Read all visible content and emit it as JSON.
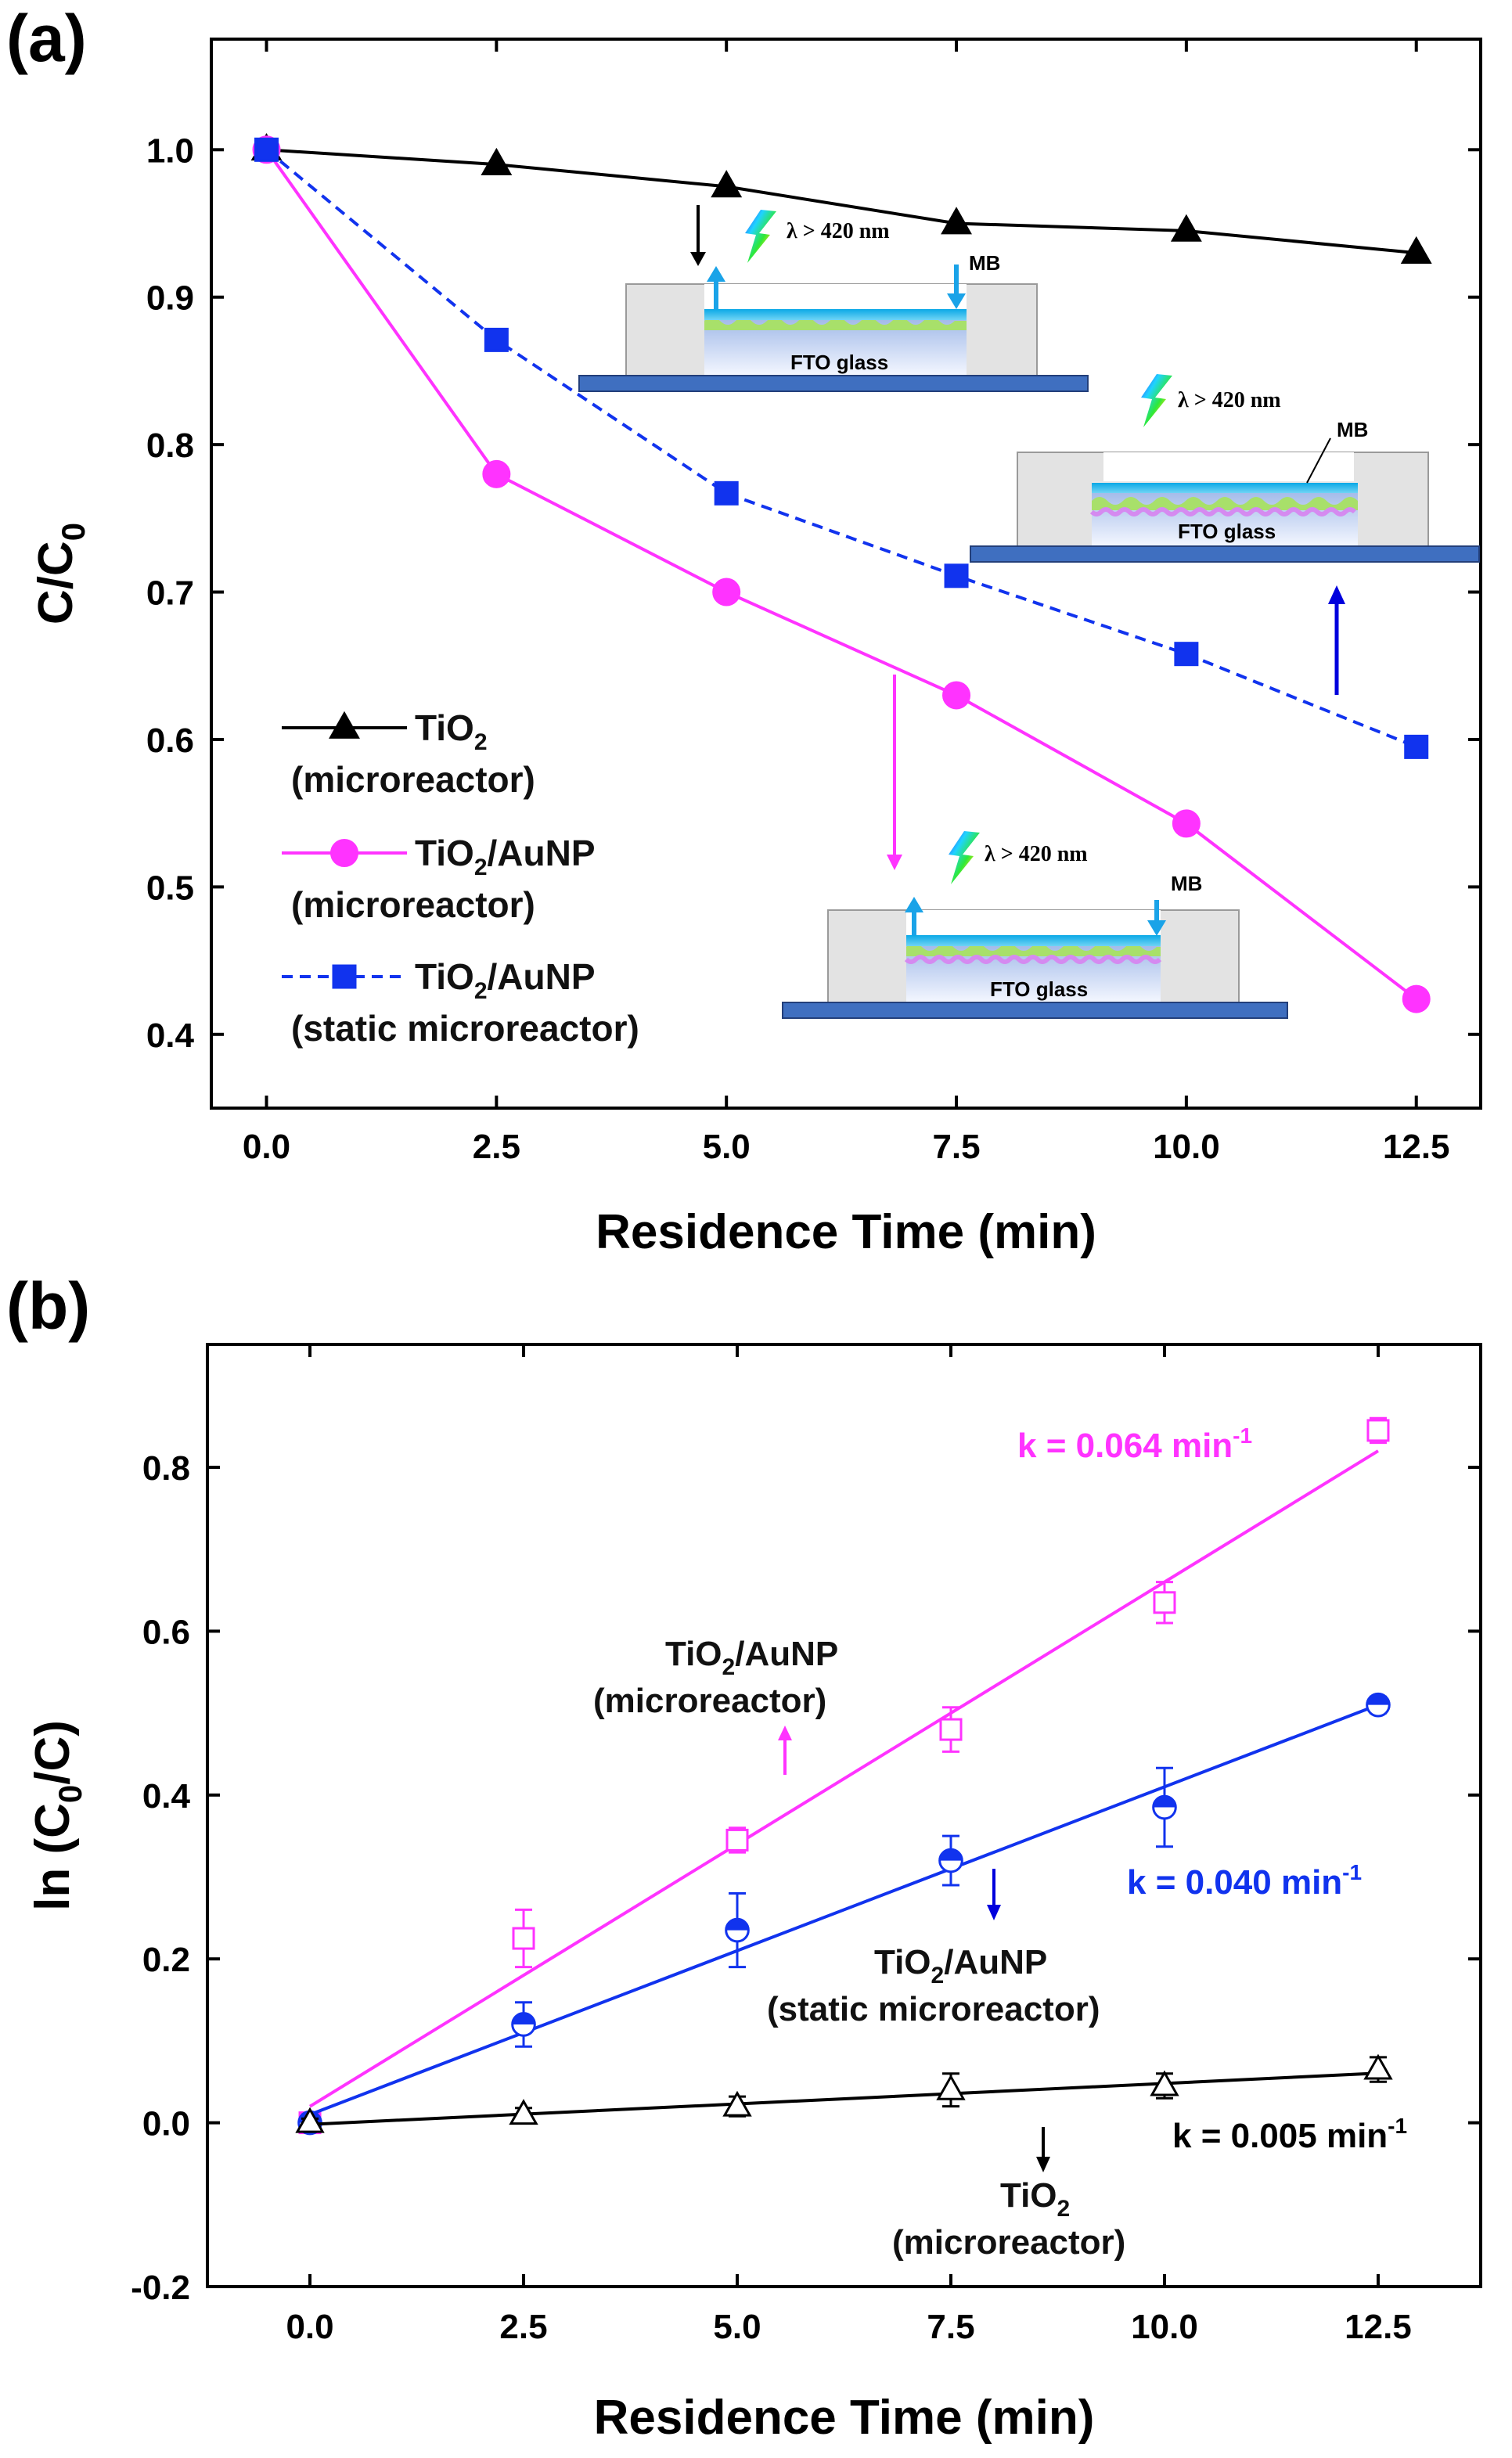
{
  "panel_a": {
    "label": "(a)",
    "insets": {
      "lambda_text": "λ > 420 nm",
      "fto_label": "FTO glass",
      "mb_label": "MB"
    }
  },
  "panel_b": {
    "label": "(b)",
    "annotations": {
      "k_magenta": "k = 0.064 min",
      "k_blue": "k = 0.040 min",
      "k_black": "k = 0.005 min",
      "k_exponent": "-1",
      "lab_magenta_1": "TiO",
      "lab_magenta_sub": "2",
      "lab_magenta_2": "/AuNP",
      "lab_magenta_3": "(microreactor)",
      "lab_blue_1": "TiO",
      "lab_blue_sub": "2",
      "lab_blue_2": "/AuNP",
      "lab_blue_3": "(static microreactor)",
      "lab_black_1": "TiO",
      "lab_black_sub": "2",
      "lab_black_3": "(microreactor)"
    }
  },
  "colors": {
    "black": "#000000",
    "magenta": "#ff33ff",
    "blue": "#1133ee",
    "arrow_blue": "#0000dd",
    "cyan": "#1aa3e8"
  },
  "chart_data": [
    {
      "type": "line",
      "title": "",
      "xlabel": "Residence Time (min)",
      "ylabel_main": "C/C",
      "ylabel_sub": "0",
      "xlim": [
        -0.6,
        13.2
      ],
      "ylim": [
        0.35,
        1.075
      ],
      "xticks": [
        0,
        2.5,
        5,
        7.5,
        10,
        12.5
      ],
      "xtick_labels": [
        "0.0",
        "2.5",
        "5.0",
        "7.5",
        "10.0",
        "12.5"
      ],
      "yticks": [
        0.4,
        0.5,
        0.6,
        0.7,
        0.8,
        0.9,
        1.0
      ],
      "ytick_labels": [
        "0.4",
        "0.5",
        "0.6",
        "0.7",
        "0.8",
        "0.9",
        "1.0"
      ],
      "x": [
        0,
        2.5,
        5,
        7.5,
        10,
        12.5
      ],
      "series": [
        {
          "name": "TiO2 (microreactor)",
          "legend_main": "TiO",
          "legend_sub": "2",
          "legend_rest": "",
          "legend_line2": "(microreactor)",
          "marker": "triangle",
          "style": "solid",
          "color": "#000000",
          "values": [
            1.0,
            0.99,
            0.975,
            0.95,
            0.945,
            0.93
          ]
        },
        {
          "name": "TiO2/AuNP (microreactor)",
          "legend_main": "TiO",
          "legend_sub": "2",
          "legend_rest": "/AuNP",
          "legend_line2": "(microreactor)",
          "marker": "circle",
          "style": "solid",
          "color": "#ff33ff",
          "values": [
            1.0,
            0.78,
            0.7,
            0.63,
            0.543,
            0.424
          ]
        },
        {
          "name": "TiO2/AuNP (static microreactor)",
          "legend_main": "TiO",
          "legend_sub": "2",
          "legend_rest": "/AuNP",
          "legend_line2": "(static microreactor)",
          "marker": "square",
          "style": "dashed",
          "color": "#1133ee",
          "values": [
            1.0,
            0.871,
            0.767,
            0.711,
            0.658,
            0.595
          ]
        }
      ]
    },
    {
      "type": "scatter",
      "title": "",
      "xlabel": "Residence Time (min)",
      "ylabel_pre": "ln (C",
      "ylabel_sub": "0",
      "ylabel_post": "/C)",
      "xlim": [
        -1.2,
        13.7
      ],
      "ylim": [
        -0.2,
        0.95
      ],
      "xticks": [
        0,
        2.5,
        5,
        7.5,
        10,
        12.5
      ],
      "xtick_labels": [
        "0.0",
        "2.5",
        "5.0",
        "7.5",
        "10.0",
        "12.5"
      ],
      "yticks": [
        -0.2,
        0.0,
        0.2,
        0.4,
        0.6,
        0.8
      ],
      "ytick_labels": [
        "-0.2",
        "0.0",
        "0.2",
        "0.4",
        "0.6",
        "0.8"
      ],
      "x": [
        0,
        2.5,
        5,
        7.5,
        10,
        12.5
      ],
      "series": [
        {
          "name": "TiO2/AuNP (microreactor)",
          "marker": "square",
          "color": "#ff33ff",
          "values": [
            0.0,
            0.225,
            0.345,
            0.48,
            0.635,
            0.845
          ],
          "errors": [
            0.01,
            0.035,
            0.015,
            0.027,
            0.025,
            0.015
          ],
          "fit": {
            "slope": 0.064,
            "intercept": 0.02
          }
        },
        {
          "name": "TiO2/AuNP (static microreactor)",
          "marker": "circle",
          "color": "#1133ee",
          "values": [
            0.0,
            0.12,
            0.235,
            0.32,
            0.385,
            0.51
          ],
          "errors": [
            0.01,
            0.027,
            0.045,
            0.03,
            0.048,
            0.01
          ],
          "fit": {
            "slope": 0.04,
            "intercept": 0.01
          }
        },
        {
          "name": "TiO2 (microreactor)",
          "marker": "triangle",
          "color": "#000000",
          "values": [
            0.0,
            0.01,
            0.02,
            0.04,
            0.045,
            0.065
          ],
          "errors": [
            0.005,
            0.008,
            0.012,
            0.02,
            0.015,
            0.015
          ],
          "fit": {
            "slope": 0.005,
            "intercept": -0.002
          }
        }
      ]
    }
  ]
}
